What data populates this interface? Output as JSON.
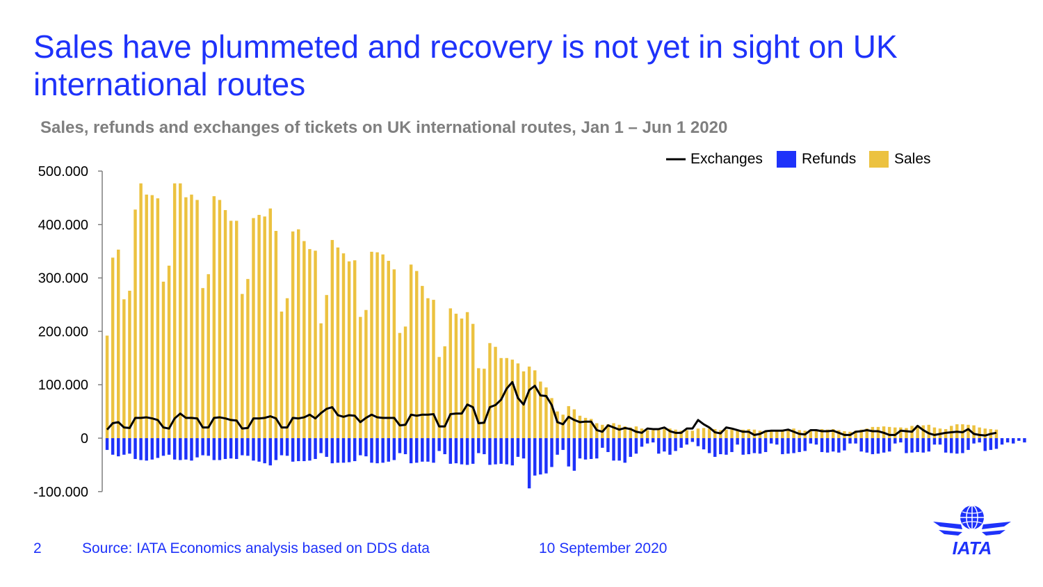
{
  "title": "Sales have plummeted and recovery is not yet in sight on UK international routes",
  "subtitle": "Sales, refunds and exchanges of tickets on UK international routes, Jan 1 – Jun 1 2020",
  "footer": {
    "page_number": "2",
    "source": "Source: IATA Economics analysis based on DDS data",
    "date": "10 September 2020"
  },
  "logo": {
    "text": "IATA",
    "icon": "iata-globe-wings-logo"
  },
  "colors": {
    "title": "#1e32fa",
    "sales": "#ecc240",
    "refunds": "#1e32fa",
    "exchanges": "#000000"
  },
  "chart_data": {
    "type": "bar",
    "x_start": "2020-01-01",
    "x_end": "2020-06-01",
    "ylim": [
      -100000,
      500000
    ],
    "yticks": [
      -100000,
      0,
      100000,
      200000,
      300000,
      400000,
      500000
    ],
    "ytick_labels": [
      "-100.000",
      "0",
      "100.000",
      "200.000",
      "300.000",
      "400.000",
      "500.000"
    ],
    "legend": {
      "position": "top-right",
      "entries": [
        "Exchanges",
        "Refunds",
        "Sales"
      ]
    },
    "series": [
      {
        "name": "Sales",
        "kind": "bar",
        "values": [
          192000,
          338000,
          353000,
          260000,
          276000,
          428000,
          477000,
          456000,
          455000,
          449000,
          293000,
          323000,
          477000,
          477000,
          451000,
          456000,
          446000,
          281000,
          307000,
          453000,
          446000,
          427000,
          407000,
          407000,
          270000,
          298000,
          412000,
          418000,
          415000,
          430000,
          388000,
          237000,
          262000,
          387000,
          391000,
          369000,
          354000,
          351000,
          215000,
          268000,
          371000,
          357000,
          346000,
          331000,
          333000,
          227000,
          240000,
          349000,
          348000,
          344000,
          332000,
          316000,
          197000,
          209000,
          325000,
          313000,
          285000,
          262000,
          259000,
          152000,
          172000,
          243000,
          233000,
          224000,
          236000,
          214000,
          131000,
          130000,
          178000,
          171000,
          150000,
          150000,
          147000,
          140000,
          125000,
          134000,
          127000,
          106000,
          95000,
          75000,
          50000,
          44000,
          60000,
          54000,
          42000,
          38000,
          36000,
          28000,
          25000,
          26000,
          28000,
          25000,
          22000,
          20000,
          22000,
          18000,
          15000,
          15000,
          17000,
          17000,
          18000,
          16000,
          14000,
          15000,
          14000,
          18000,
          19000,
          18000,
          17000,
          15000,
          16000,
          16000,
          16000,
          16000,
          17000,
          16000,
          14000,
          13000,
          14000,
          15000,
          16000,
          17000,
          18000,
          15000,
          14000,
          13000,
          15000,
          17000,
          16000,
          17000,
          15000,
          13000,
          12000,
          14000,
          16000,
          18000,
          21000,
          21000,
          22000,
          21000,
          20000,
          20000,
          19000,
          23000,
          24000,
          24000,
          25000,
          20000,
          18000,
          17000,
          23000,
          26000,
          26000,
          25000,
          24000,
          20000,
          18000,
          17000,
          16000
        ]
      },
      {
        "name": "Refunds",
        "kind": "bar",
        "values": [
          -22000,
          -31000,
          -34000,
          -31000,
          -29000,
          -39000,
          -41000,
          -42000,
          -40000,
          -37000,
          -33000,
          -31000,
          -40000,
          -41000,
          -40000,
          -42000,
          -36000,
          -32000,
          -33000,
          -41000,
          -41000,
          -39000,
          -38000,
          -39000,
          -32000,
          -33000,
          -42000,
          -44000,
          -47000,
          -51000,
          -41000,
          -32000,
          -33000,
          -44000,
          -43000,
          -43000,
          -42000,
          -39000,
          -28000,
          -35000,
          -47000,
          -46000,
          -46000,
          -45000,
          -43000,
          -32000,
          -34000,
          -46000,
          -47000,
          -46000,
          -44000,
          -41000,
          -28000,
          -30000,
          -47000,
          -46000,
          -44000,
          -44000,
          -46000,
          -24000,
          -30000,
          -48000,
          -47000,
          -49000,
          -50000,
          -48000,
          -28000,
          -30000,
          -50000,
          -49000,
          -48000,
          -49000,
          -51000,
          -35000,
          -38000,
          -94000,
          -70000,
          -68000,
          -66000,
          -54000,
          -31000,
          -22000,
          -53000,
          -61000,
          -38000,
          -40000,
          -39000,
          -38000,
          -18000,
          -26000,
          -42000,
          -42000,
          -46000,
          -35000,
          -29000,
          -16000,
          -10000,
          -8000,
          -29000,
          -25000,
          -31000,
          -24000,
          -18000,
          -12000,
          -7000,
          -15000,
          -21000,
          -28000,
          -35000,
          -30000,
          -31000,
          -26000,
          -12000,
          -31000,
          -30000,
          -28000,
          -29000,
          -26000,
          -10000,
          -12000,
          -30000,
          -29000,
          -28000,
          -26000,
          -24000,
          -10000,
          -12000,
          -26000,
          -27000,
          -25000,
          -27000,
          -23000,
          -10000,
          -10000,
          -25000,
          -27000,
          -30000,
          -29000,
          -27000,
          -25000,
          -10000,
          -8000,
          -28000,
          -27000,
          -26000,
          -27000,
          -25000,
          -12000,
          -12000,
          -27000,
          -28000,
          -29000,
          -28000,
          -22000,
          -10000,
          -8000,
          -24000,
          -22000,
          -20000,
          -12000,
          -8000,
          -10000,
          -5000,
          -8000
        ]
      },
      {
        "name": "Exchanges",
        "kind": "line",
        "values": [
          16000,
          28000,
          30000,
          20000,
          19000,
          38000,
          38000,
          39000,
          37000,
          34000,
          20000,
          18000,
          37000,
          46000,
          38000,
          38000,
          37000,
          20000,
          20000,
          38000,
          39000,
          37000,
          34000,
          33000,
          18000,
          19000,
          37000,
          37000,
          38000,
          41000,
          37000,
          20000,
          20000,
          38000,
          37000,
          39000,
          44000,
          37000,
          47000,
          55000,
          58000,
          43000,
          40000,
          43000,
          42000,
          30000,
          38000,
          44000,
          39000,
          38000,
          38000,
          38000,
          24000,
          25000,
          44000,
          42000,
          44000,
          44000,
          45000,
          22000,
          22000,
          45000,
          46000,
          46000,
          63000,
          58000,
          28000,
          29000,
          58000,
          62000,
          72000,
          93000,
          105000,
          75000,
          63000,
          90000,
          98000,
          80000,
          79000,
          62000,
          30000,
          26000,
          40000,
          34000,
          30000,
          31000,
          31000,
          15000,
          12000,
          24000,
          20000,
          16000,
          19000,
          17000,
          12000,
          10000,
          18000,
          17000,
          17000,
          20000,
          13000,
          10000,
          10000,
          18000,
          18000,
          34000,
          26000,
          20000,
          11000,
          9000,
          20000,
          18000,
          15000,
          12000,
          12000,
          6000,
          8000,
          13000,
          14000,
          14000,
          14000,
          16000,
          12000,
          8000,
          7000,
          15000,
          15000,
          13000,
          13000,
          14000,
          10000,
          6000,
          6000,
          12000,
          13000,
          15000,
          13000,
          13000,
          10000,
          6000,
          6000,
          14000,
          13000,
          12000,
          23000,
          15000,
          9000,
          6000,
          8000,
          10000,
          11000,
          12000,
          11000,
          17000,
          8000,
          6000,
          5000,
          8000,
          10000
        ]
      }
    ]
  }
}
